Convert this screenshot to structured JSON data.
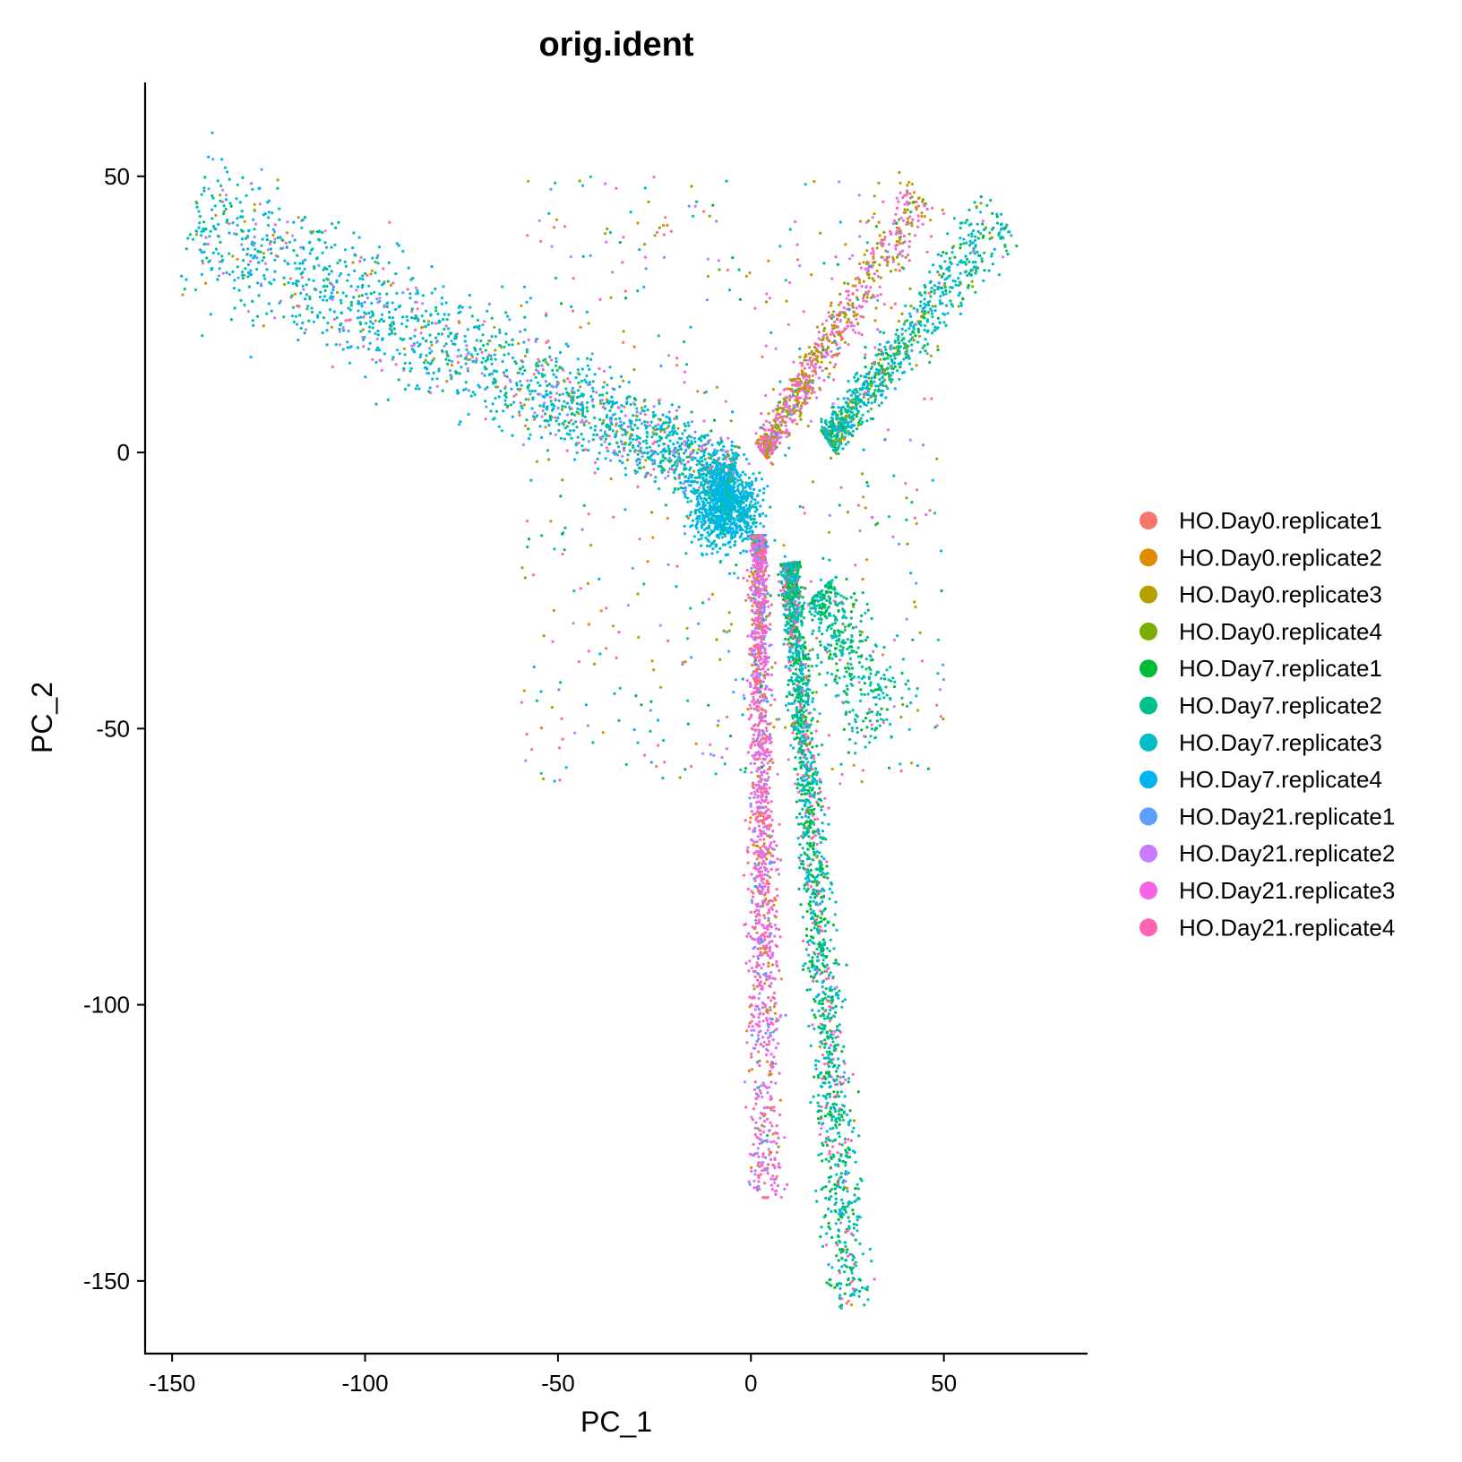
{
  "chart_data": {
    "type": "scatter",
    "title": "orig.ident",
    "xlabel": "PC_1",
    "ylabel": "PC_2",
    "xlim": [
      -157,
      87
    ],
    "ylim": [
      -163,
      67
    ],
    "xticks": [
      -150,
      -100,
      -50,
      0,
      50
    ],
    "yticks": [
      50,
      0,
      -50,
      -100,
      -150
    ],
    "grid": false,
    "legend_position": "right",
    "series": [
      {
        "name": "HO.Day0.replicate1",
        "color": "#F8766D"
      },
      {
        "name": "HO.Day0.replicate2",
        "color": "#DE8C00"
      },
      {
        "name": "HO.Day0.replicate3",
        "color": "#B79F00"
      },
      {
        "name": "HO.Day0.replicate4",
        "color": "#7CAE00"
      },
      {
        "name": "HO.Day7.replicate1",
        "color": "#00BA38"
      },
      {
        "name": "HO.Day7.replicate2",
        "color": "#00C08B"
      },
      {
        "name": "HO.Day7.replicate3",
        "color": "#00BFC4"
      },
      {
        "name": "HO.Day7.replicate4",
        "color": "#00B4F0"
      },
      {
        "name": "HO.Day21.replicate1",
        "color": "#619CFF"
      },
      {
        "name": "HO.Day21.replicate2",
        "color": "#C77CFF"
      },
      {
        "name": "HO.Day21.replicate3",
        "color": "#F564E3"
      },
      {
        "name": "HO.Day21.replicate4",
        "color": "#FF64B0"
      }
    ],
    "arms": [
      {
        "name": "upper-left",
        "from": [
          -5,
          -5
        ],
        "to": [
          -145,
          42
        ],
        "spread": 7,
        "dominant": [
          "HO.Day7.replicate4",
          "HO.Day7.replicate3",
          "HO.Day7.replicate2"
        ],
        "tail": [
          "HO.Day21.replicate4",
          "HO.Day21.replicate2",
          "HO.Day21.replicate1",
          "HO.Day0.replicate3"
        ]
      },
      {
        "name": "upper-right-pink",
        "from": [
          3,
          0
        ],
        "to": [
          44,
          47
        ],
        "spread": 3,
        "dominant": [
          "HO.Day21.replicate4",
          "HO.Day21.replicate3",
          "HO.Day0.replicate3",
          "HO.Day0.replicate4"
        ],
        "tail": [
          "HO.Day0.replicate2",
          "HO.Day21.replicate2"
        ]
      },
      {
        "name": "upper-right-blue",
        "from": [
          20,
          2
        ],
        "to": [
          65,
          43
        ],
        "spread": 3.5,
        "dominant": [
          "HO.Day7.replicate4",
          "HO.Day7.replicate3",
          "HO.Day7.replicate2"
        ],
        "tail": [
          "HO.Day7.replicate1",
          "HO.Day0.replicate4"
        ]
      },
      {
        "name": "lower-center",
        "from": [
          2,
          -15
        ],
        "to": [
          4,
          -135
        ],
        "spread": 2.5,
        "dominant": [
          "HO.Day21.replicate4",
          "HO.Day21.replicate3",
          "HO.Day21.replicate2"
        ],
        "tail": [
          "HO.Day0.replicate1",
          "HO.Day0.replicate2",
          "HO.Day21.replicate1"
        ]
      },
      {
        "name": "lower-right",
        "from": [
          10,
          -20
        ],
        "to": [
          26,
          -155
        ],
        "spread": 3,
        "dominant": [
          "HO.Day7.replicate2",
          "HO.Day7.replicate3",
          "HO.Day7.replicate1"
        ],
        "tail": [
          "HO.Day7.replicate4",
          "HO.Day21.replicate4"
        ]
      },
      {
        "name": "side-cloud",
        "from": [
          18,
          -25
        ],
        "to": [
          35,
          -50
        ],
        "spread": 6,
        "dominant": [
          "HO.Day7.replicate2",
          "HO.Day7.replicate3"
        ],
        "tail": [
          "HO.Day7.replicate1"
        ]
      }
    ]
  }
}
